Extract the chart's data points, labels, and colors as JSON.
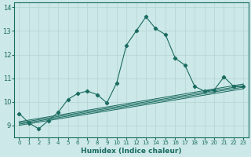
{
  "xlabel": "Humidex (Indice chaleur)",
  "ylabel": "",
  "bg_color": "#cce8e8",
  "line_color": "#1a6b60",
  "grid_color": "#b8d8d4",
  "xlim": [
    -0.5,
    23.5
  ],
  "ylim": [
    8.5,
    14.2
  ],
  "yticks": [
    9,
    10,
    11,
    12,
    13,
    14
  ],
  "xticks": [
    0,
    1,
    2,
    3,
    4,
    5,
    6,
    7,
    8,
    9,
    10,
    11,
    12,
    13,
    14,
    15,
    16,
    17,
    18,
    19,
    20,
    21,
    22,
    23
  ],
  "main_line_x": [
    0,
    1,
    2,
    3,
    4,
    5,
    6,
    7,
    8,
    9,
    10,
    11,
    12,
    13,
    14,
    15,
    16,
    17,
    18,
    19,
    20,
    21,
    22,
    23
  ],
  "main_line_y": [
    9.5,
    9.1,
    8.85,
    9.2,
    9.55,
    10.1,
    10.35,
    10.45,
    10.3,
    9.95,
    10.8,
    12.4,
    13.0,
    13.6,
    13.1,
    12.85,
    11.85,
    11.55,
    10.65,
    10.45,
    10.5,
    11.05,
    10.65,
    10.65
  ],
  "reg_line_x": [
    0,
    23
  ],
  "reg_lines_y": [
    [
      9.0,
      10.55
    ],
    [
      9.05,
      10.62
    ],
    [
      9.1,
      10.68
    ],
    [
      9.15,
      10.75
    ]
  ]
}
